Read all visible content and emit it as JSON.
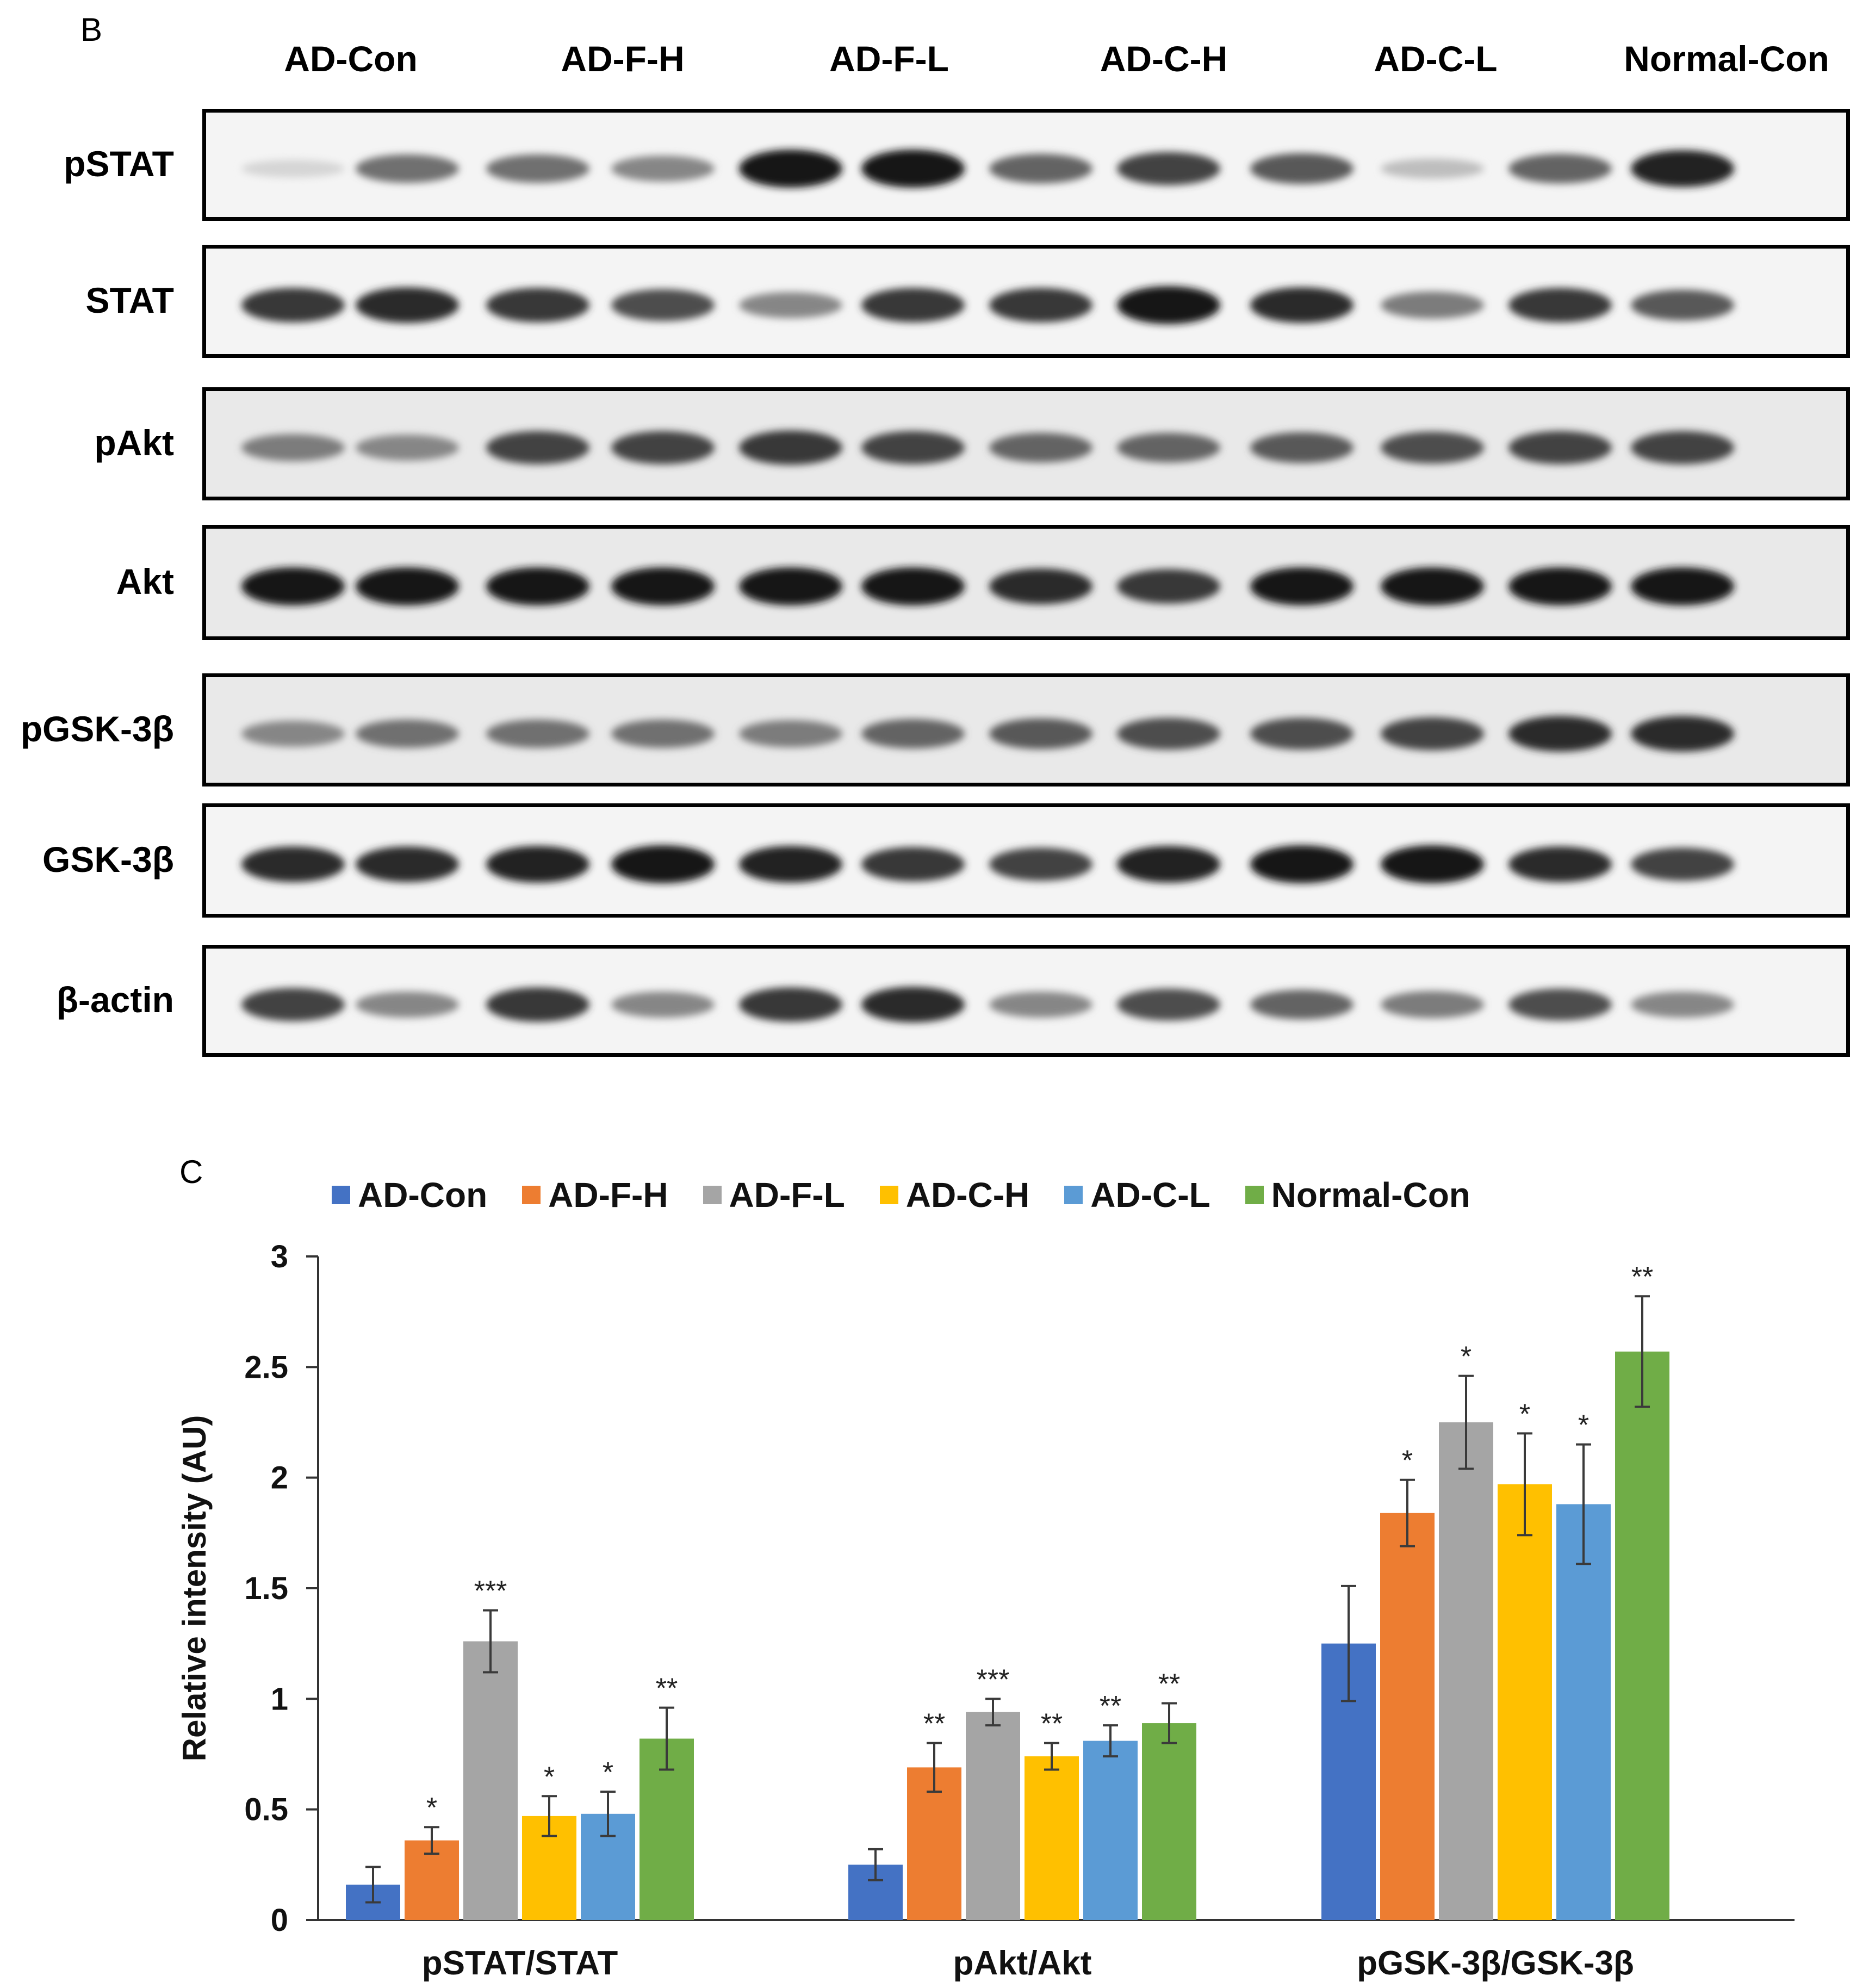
{
  "panel_b": {
    "letter": "B",
    "lanes": [
      "AD-Con",
      "AD-F-H",
      "AD-F-L",
      "AD-C-H",
      "AD-C-L",
      "Normal-Con"
    ],
    "rows": [
      {
        "label": "pSTAT",
        "bands": [
          0.1,
          0.55,
          0.55,
          0.45,
          0.95,
          0.95,
          0.6,
          0.75,
          0.65,
          0.2,
          0.6,
          0.9
        ]
      },
      {
        "label": "STAT",
        "bands": [
          0.8,
          0.85,
          0.8,
          0.7,
          0.45,
          0.8,
          0.8,
          0.95,
          0.85,
          0.5,
          0.8,
          0.65
        ]
      },
      {
        "label": "pAkt",
        "bands": [
          0.5,
          0.45,
          0.75,
          0.75,
          0.8,
          0.75,
          0.6,
          0.6,
          0.65,
          0.7,
          0.75,
          0.75
        ]
      },
      {
        "label": "Akt",
        "bands": [
          0.95,
          0.95,
          0.95,
          0.95,
          0.95,
          0.95,
          0.85,
          0.8,
          0.95,
          0.95,
          0.95,
          0.95
        ]
      },
      {
        "label": "pGSK-3β",
        "bands": [
          0.45,
          0.55,
          0.55,
          0.55,
          0.5,
          0.6,
          0.65,
          0.7,
          0.7,
          0.75,
          0.85,
          0.85
        ]
      },
      {
        "label": "GSK-3β",
        "bands": [
          0.85,
          0.85,
          0.9,
          0.95,
          0.9,
          0.8,
          0.75,
          0.9,
          0.95,
          0.95,
          0.85,
          0.75
        ]
      },
      {
        "label": "β-actin",
        "bands": [
          0.75,
          0.45,
          0.8,
          0.45,
          0.8,
          0.85,
          0.45,
          0.7,
          0.6,
          0.5,
          0.7,
          0.45
        ]
      }
    ]
  },
  "chart_data": {
    "type": "bar",
    "panel_letter": "C",
    "categories": [
      "pSTAT/STAT",
      "pAkt/Akt",
      "pGSK-3β/GSK-3β"
    ],
    "ylabel": "Relative intensity (AU)",
    "xlabel": "",
    "ylim": [
      0,
      3
    ],
    "yticks": [
      "0",
      "0.5",
      "1",
      "1.5",
      "2",
      "2.5",
      "3"
    ],
    "legend_position": "top",
    "series": [
      {
        "name": "AD-Con",
        "color": "#4472C4",
        "values": [
          0.16,
          0.25,
          1.25
        ],
        "errors": [
          0.08,
          0.07,
          0.26
        ],
        "sig": [
          "",
          "",
          ""
        ]
      },
      {
        "name": "AD-F-H",
        "color": "#ED7D31",
        "values": [
          0.36,
          0.69,
          1.84
        ],
        "errors": [
          0.06,
          0.11,
          0.15
        ],
        "sig": [
          "*",
          "**",
          "*"
        ]
      },
      {
        "name": "AD-F-L",
        "color": "#A5A5A5",
        "values": [
          1.26,
          0.94,
          2.25
        ],
        "errors": [
          0.14,
          0.06,
          0.21
        ],
        "sig": [
          "***",
          "***",
          "*"
        ]
      },
      {
        "name": "AD-C-H",
        "color": "#FFC000",
        "values": [
          0.47,
          0.74,
          1.97
        ],
        "errors": [
          0.09,
          0.06,
          0.23
        ],
        "sig": [
          "*",
          "**",
          "*"
        ]
      },
      {
        "name": "AD-C-L",
        "color": "#5B9BD5",
        "values": [
          0.48,
          0.81,
          1.88
        ],
        "errors": [
          0.1,
          0.07,
          0.27
        ],
        "sig": [
          "*",
          "**",
          "*"
        ]
      },
      {
        "name": "Normal-Con",
        "color": "#70AD47",
        "values": [
          0.82,
          0.89,
          2.57
        ],
        "errors": [
          0.14,
          0.09,
          0.25
        ],
        "sig": [
          "**",
          "**",
          "**"
        ]
      }
    ]
  }
}
